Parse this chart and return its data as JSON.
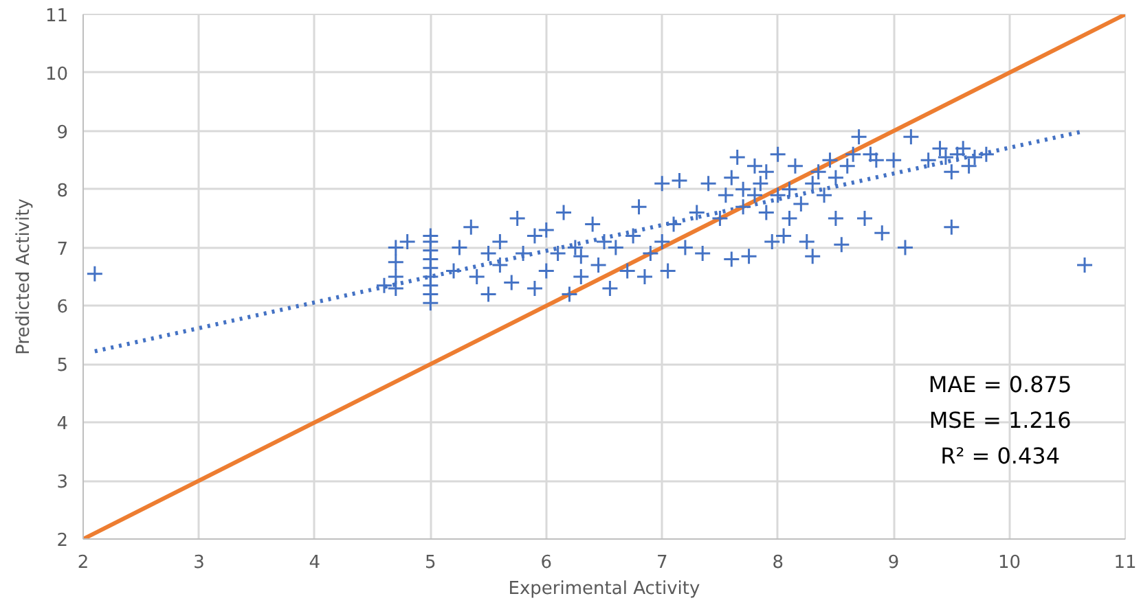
{
  "chart_data": {
    "type": "scatter",
    "xlabel": "Experimental Activity",
    "ylabel": "Predicted Activity",
    "xlim": [
      2,
      11
    ],
    "ylim": [
      2,
      11
    ],
    "xticks": [
      2,
      3,
      4,
      5,
      6,
      7,
      8,
      9,
      10,
      11
    ],
    "yticks": [
      2,
      3,
      4,
      5,
      6,
      7,
      8,
      9,
      10,
      11
    ],
    "grid": true,
    "series": [
      {
        "color": "#4472c4",
        "marker": "cross",
        "x": [
          2.1,
          4.6,
          4.7,
          4.7,
          4.7,
          4.7,
          4.8,
          5.0,
          5.0,
          5.0,
          5.0,
          5.0,
          5.0,
          5.0,
          5.0,
          5.0,
          5.2,
          5.25,
          5.35,
          5.4,
          5.5,
          5.5,
          5.6,
          5.6,
          5.7,
          5.75,
          5.8,
          5.9,
          5.9,
          6.0,
          6.0,
          6.1,
          6.15,
          6.2,
          6.25,
          6.3,
          6.3,
          6.4,
          6.45,
          6.5,
          6.55,
          6.6,
          6.7,
          6.75,
          6.8,
          6.85,
          6.9,
          7.0,
          7.0,
          7.05,
          7.1,
          7.15,
          7.2,
          7.3,
          7.35,
          7.4,
          7.5,
          7.55,
          7.6,
          7.6,
          7.65,
          7.7,
          7.7,
          7.75,
          7.8,
          7.8,
          7.85,
          7.9,
          7.9,
          7.95,
          8.0,
          8.0,
          8.05,
          8.1,
          8.1,
          8.15,
          8.2,
          8.25,
          8.3,
          8.3,
          8.35,
          8.4,
          8.45,
          8.5,
          8.5,
          8.55,
          8.6,
          8.65,
          8.7,
          8.75,
          8.8,
          8.85,
          8.9,
          9.0,
          9.1,
          9.15,
          9.3,
          9.4,
          9.45,
          9.5,
          9.5,
          9.55,
          9.6,
          9.65,
          9.7,
          9.8,
          10.65
        ],
        "values": [
          6.55,
          6.35,
          6.3,
          6.5,
          6.75,
          7.0,
          7.1,
          6.05,
          6.2,
          6.35,
          6.5,
          6.65,
          6.8,
          6.95,
          7.1,
          7.2,
          6.6,
          7.0,
          7.35,
          6.5,
          6.9,
          6.2,
          7.1,
          6.7,
          6.4,
          7.5,
          6.9,
          7.2,
          6.3,
          6.6,
          7.3,
          6.9,
          7.6,
          6.2,
          7.0,
          6.5,
          6.85,
          7.4,
          6.7,
          7.1,
          6.3,
          7.0,
          6.6,
          7.2,
          7.7,
          6.5,
          6.9,
          7.1,
          8.1,
          6.6,
          7.4,
          8.15,
          7.0,
          7.6,
          6.9,
          8.1,
          7.5,
          7.9,
          6.8,
          8.2,
          8.55,
          7.7,
          8.0,
          6.85,
          7.9,
          8.4,
          8.1,
          7.6,
          8.3,
          7.1,
          7.9,
          8.6,
          7.2,
          8.0,
          7.5,
          8.4,
          7.75,
          7.1,
          8.1,
          6.85,
          8.3,
          7.9,
          8.5,
          8.2,
          7.5,
          7.05,
          8.4,
          8.6,
          8.9,
          7.5,
          8.6,
          8.5,
          7.25,
          8.5,
          7.0,
          8.9,
          8.5,
          8.7,
          8.55,
          8.3,
          7.35,
          8.6,
          8.7,
          8.4,
          8.55,
          8.6,
          6.7
        ]
      },
      {
        "type": "line",
        "color": "#4472c4",
        "line_style": "dotted",
        "marker": "none",
        "x": [
          2.1,
          10.65
        ],
        "values": [
          5.22,
          9.0
        ]
      },
      {
        "type": "line",
        "color": "#ed7d31",
        "line_style": "solid",
        "marker": "none",
        "x": [
          2,
          11
        ],
        "values": [
          2,
          11
        ]
      }
    ],
    "annotations": [
      "MAE = 0.875",
      "MSE = 1.216",
      "R² = 0.434"
    ]
  }
}
